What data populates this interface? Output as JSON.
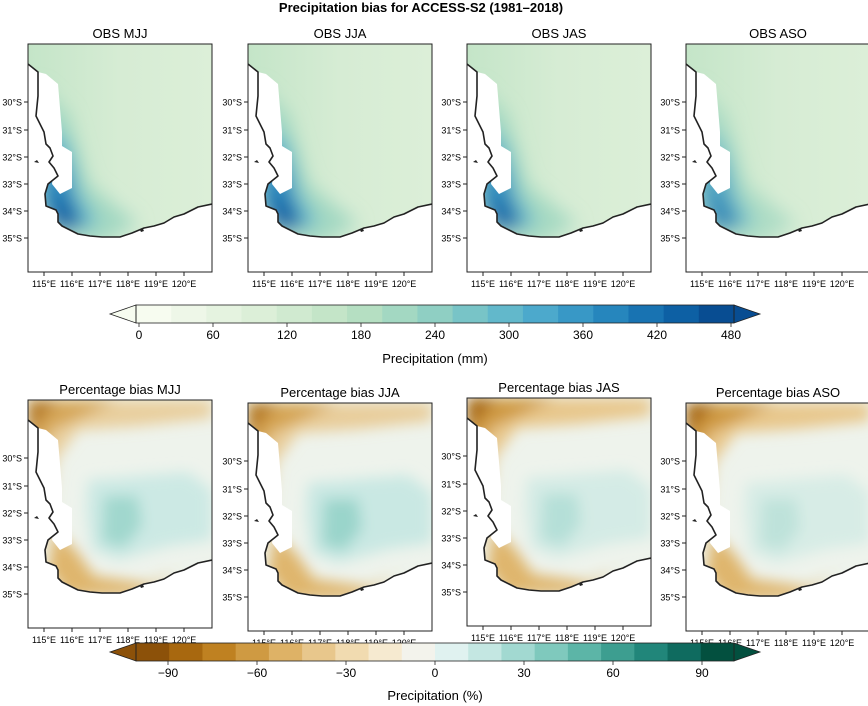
{
  "title": "Precipitation bias for ACCESS-S2 (1981–2018)",
  "obs_panels": [
    {
      "title": "OBS MJJ",
      "intensity": 1.0
    },
    {
      "title": "OBS JJA",
      "intensity": 1.0
    },
    {
      "title": "OBS JAS",
      "intensity": 0.82
    },
    {
      "title": "OBS ASO",
      "intensity": 0.45
    }
  ],
  "bias_panels": [
    {
      "title": "Percentage bias MJJ",
      "dry": 0.7,
      "wet": 0.7
    },
    {
      "title": "Percentage bias JJA",
      "dry": 0.75,
      "wet": 0.8
    },
    {
      "title": "Percentage bias JAS",
      "dry": 1.0,
      "wet": 0.45
    },
    {
      "title": "Percentage bias ASO",
      "dry": 1.0,
      "wet": 0.35
    }
  ],
  "lat_labels": [
    "30°S",
    "31°S",
    "32°S",
    "33°S",
    "34°S",
    "35°S"
  ],
  "lon_labels": [
    "115°E",
    "116°E",
    "117°E",
    "118°E",
    "119°E",
    "120°E"
  ],
  "colorbar_obs": {
    "label": "Precipitation (mm)",
    "ticks": [
      "0",
      "60",
      "120",
      "180",
      "240",
      "300",
      "360",
      "420",
      "480"
    ],
    "colors": [
      "#f7fcf0",
      "#eef7e8",
      "#e5f3e0",
      "#dcefd8",
      "#d0ead0",
      "#c4e5c8",
      "#b5dfc2",
      "#a3d8c2",
      "#8fcfc3",
      "#78c4c7",
      "#62b8cb",
      "#4ca9cc",
      "#3898c6",
      "#2686bd",
      "#1873b2",
      "#0d60a4",
      "#084d92"
    ]
  },
  "colorbar_bias": {
    "label": "Precipitation (%)",
    "ticks": [
      "−90",
      "−60",
      "−30",
      "0",
      "30",
      "60",
      "90"
    ],
    "colors": [
      "#8c5109",
      "#a8680f",
      "#bf8121",
      "#cf9a42",
      "#deb266",
      "#e8c78c",
      "#f1dbb0",
      "#f6ead0",
      "#f3f3ec",
      "#e0f2f0",
      "#c4e7e2",
      "#a2d9d1",
      "#7fc9bd",
      "#5cb5a7",
      "#3d9e90",
      "#21867a",
      "#0f6b5f",
      "#03503f"
    ]
  }
}
